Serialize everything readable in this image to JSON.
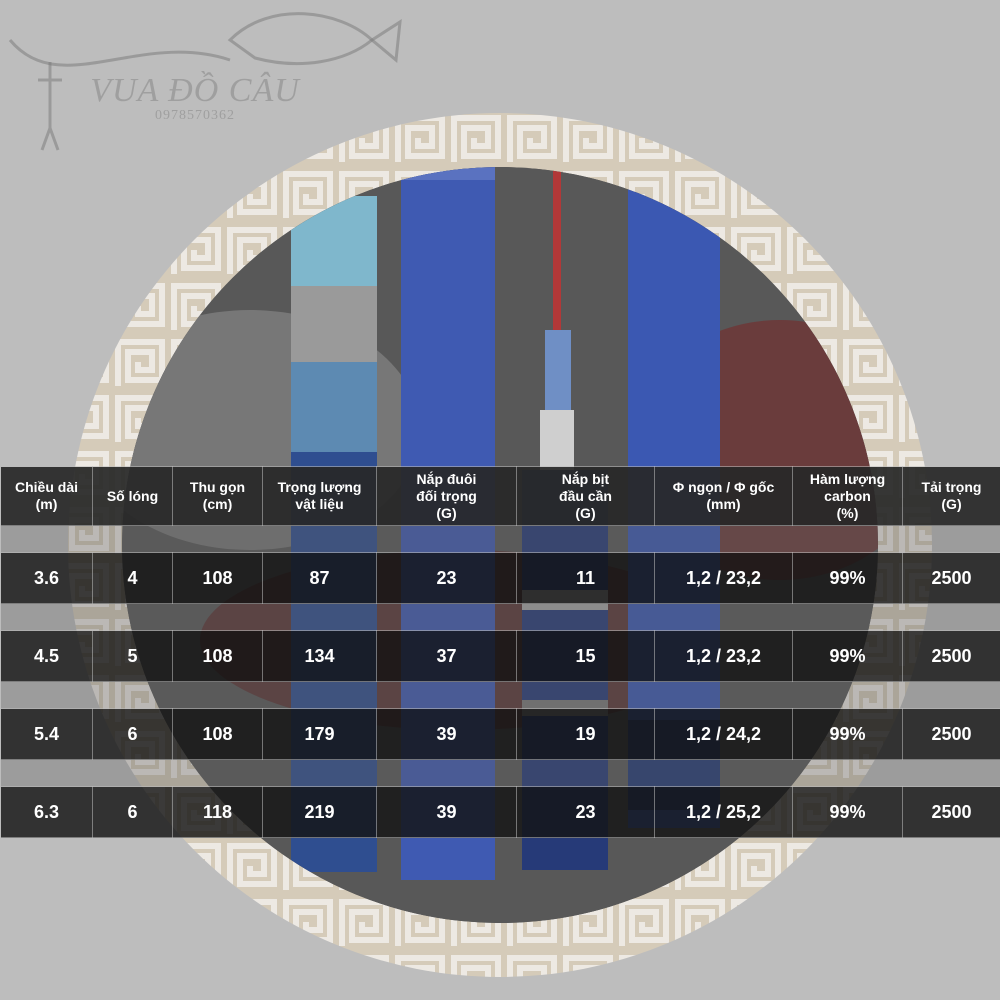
{
  "brand": {
    "name": "VUA ĐỒ CÂU",
    "phone": "0978570362"
  },
  "table": {
    "headers": [
      {
        "line1": "Chiều dài",
        "line2": "(m)",
        "line3": ""
      },
      {
        "line1": "Số lóng",
        "line2": "",
        "line3": ""
      },
      {
        "line1": "Thu gọn",
        "line2": "(cm)",
        "line3": ""
      },
      {
        "line1": "Trọng lượng",
        "line2": "vật liệu",
        "line3": ""
      },
      {
        "line1": "Nắp đuôi",
        "line2": "đối trọng",
        "line3": "(G)"
      },
      {
        "line1": "Nắp bịt",
        "line2": "đầu cần",
        "line3": "(G)"
      },
      {
        "line1": "Φ ngọn / Φ gốc",
        "line2": "(mm)",
        "line3": ""
      },
      {
        "line1": "Hàm lượng",
        "line2": "carbon",
        "line3": "(%)"
      },
      {
        "line1": "Tải trọng",
        "line2": "(G)",
        "line3": ""
      }
    ],
    "rows": [
      [
        "3.6",
        "4",
        "108",
        "87",
        "23",
        "11",
        "1,2 / 23,2",
        "99%",
        "2500"
      ],
      [
        "4.5",
        "5",
        "108",
        "134",
        "37",
        "15",
        "1,2 / 23,2",
        "99%",
        "2500"
      ],
      [
        "5.4",
        "6",
        "108",
        "179",
        "39",
        "19",
        "1,2 / 24,2",
        "99%",
        "2500"
      ],
      [
        "6.3",
        "6",
        "118",
        "219",
        "39",
        "23",
        "1,2 / 25,2",
        "99%",
        "2500"
      ]
    ]
  }
}
